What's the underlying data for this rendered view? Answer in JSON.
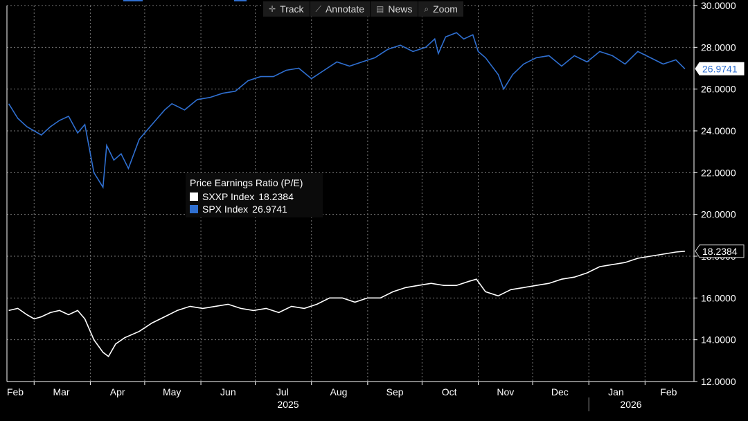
{
  "toolbar": {
    "track": "Track",
    "annotate": "Annotate",
    "news": "News",
    "zoom": "Zoom"
  },
  "legend": {
    "title": "Price Earnings Ratio (P/E)",
    "items": [
      {
        "name": "SXXP Index",
        "value": "18.2384",
        "color": "#ffffff"
      },
      {
        "name": "SPX Index",
        "value": "26.9741",
        "color": "#2f6fd0"
      }
    ]
  },
  "chart_data": {
    "type": "line",
    "title": "Price Earnings Ratio (P/E)",
    "ylim": [
      12,
      30
    ],
    "yticks": [
      "12.0000",
      "14.0000",
      "16.0000",
      "18.0000",
      "20.0000",
      "22.0000",
      "24.0000",
      "26.0000",
      "28.0000",
      "30.0000"
    ],
    "x_month_labels": [
      "Feb",
      "Mar",
      "Apr",
      "May",
      "Jun",
      "Jul",
      "Aug",
      "Sep",
      "Oct",
      "Nov",
      "Dec",
      "Jan",
      "Feb"
    ],
    "year_labels": [
      "2025",
      "2026"
    ],
    "grid": true,
    "series": [
      {
        "name": "SPX Index",
        "color": "#2f6fd0",
        "last_value": "26.9741",
        "points": [
          [
            "2025-02-15",
            25.3
          ],
          [
            "2025-02-20",
            24.6
          ],
          [
            "2025-02-25",
            24.2
          ],
          [
            "2025-03-01",
            24.0
          ],
          [
            "2025-03-05",
            23.8
          ],
          [
            "2025-03-10",
            24.2
          ],
          [
            "2025-03-15",
            24.5
          ],
          [
            "2025-03-20",
            24.7
          ],
          [
            "2025-03-25",
            23.9
          ],
          [
            "2025-03-29",
            24.3
          ],
          [
            "2025-04-03",
            22.0
          ],
          [
            "2025-04-08",
            21.3
          ],
          [
            "2025-04-10",
            23.3
          ],
          [
            "2025-04-14",
            22.6
          ],
          [
            "2025-04-18",
            22.9
          ],
          [
            "2025-04-22",
            22.2
          ],
          [
            "2025-04-28",
            23.6
          ],
          [
            "2025-05-05",
            24.3
          ],
          [
            "2025-05-12",
            25.0
          ],
          [
            "2025-05-16",
            25.3
          ],
          [
            "2025-05-23",
            25.0
          ],
          [
            "2025-05-30",
            25.5
          ],
          [
            "2025-06-06",
            25.6
          ],
          [
            "2025-06-13",
            25.8
          ],
          [
            "2025-06-20",
            25.9
          ],
          [
            "2025-06-27",
            26.4
          ],
          [
            "2025-07-04",
            26.6
          ],
          [
            "2025-07-11",
            26.6
          ],
          [
            "2025-07-18",
            26.9
          ],
          [
            "2025-07-25",
            27.0
          ],
          [
            "2025-08-01",
            26.5
          ],
          [
            "2025-08-08",
            26.9
          ],
          [
            "2025-08-15",
            27.3
          ],
          [
            "2025-08-22",
            27.1
          ],
          [
            "2025-08-29",
            27.3
          ],
          [
            "2025-09-05",
            27.5
          ],
          [
            "2025-09-12",
            27.9
          ],
          [
            "2025-09-19",
            28.1
          ],
          [
            "2025-09-26",
            27.8
          ],
          [
            "2025-10-03",
            28.0
          ],
          [
            "2025-10-08",
            28.4
          ],
          [
            "2025-10-10",
            27.7
          ],
          [
            "2025-10-14",
            28.5
          ],
          [
            "2025-10-20",
            28.7
          ],
          [
            "2025-10-24",
            28.4
          ],
          [
            "2025-10-29",
            28.6
          ],
          [
            "2025-11-01",
            27.8
          ],
          [
            "2025-11-05",
            27.5
          ],
          [
            "2025-11-12",
            26.7
          ],
          [
            "2025-11-15",
            26.0
          ],
          [
            "2025-11-20",
            26.7
          ],
          [
            "2025-11-26",
            27.2
          ],
          [
            "2025-12-03",
            27.5
          ],
          [
            "2025-12-10",
            27.6
          ],
          [
            "2025-12-17",
            27.1
          ],
          [
            "2025-12-24",
            27.6
          ],
          [
            "2025-12-31",
            27.3
          ],
          [
            "2026-01-07",
            27.8
          ],
          [
            "2026-01-14",
            27.6
          ],
          [
            "2026-01-21",
            27.2
          ],
          [
            "2026-01-28",
            27.8
          ],
          [
            "2026-02-04",
            27.5
          ],
          [
            "2026-02-11",
            27.2
          ],
          [
            "2026-02-18",
            27.4
          ],
          [
            "2026-02-23",
            26.97
          ]
        ]
      },
      {
        "name": "SXXP Index",
        "color": "#ffffff",
        "last_value": "18.2384",
        "points": [
          [
            "2025-02-15",
            15.4
          ],
          [
            "2025-02-20",
            15.5
          ],
          [
            "2025-02-25",
            15.2
          ],
          [
            "2025-03-01",
            15.0
          ],
          [
            "2025-03-05",
            15.1
          ],
          [
            "2025-03-10",
            15.3
          ],
          [
            "2025-03-15",
            15.4
          ],
          [
            "2025-03-20",
            15.2
          ],
          [
            "2025-03-25",
            15.4
          ],
          [
            "2025-03-29",
            15.0
          ],
          [
            "2025-04-03",
            14.0
          ],
          [
            "2025-04-08",
            13.4
          ],
          [
            "2025-04-11",
            13.2
          ],
          [
            "2025-04-15",
            13.8
          ],
          [
            "2025-04-20",
            14.1
          ],
          [
            "2025-04-28",
            14.4
          ],
          [
            "2025-05-05",
            14.8
          ],
          [
            "2025-05-12",
            15.1
          ],
          [
            "2025-05-19",
            15.4
          ],
          [
            "2025-05-26",
            15.6
          ],
          [
            "2025-06-02",
            15.5
          ],
          [
            "2025-06-09",
            15.6
          ],
          [
            "2025-06-16",
            15.7
          ],
          [
            "2025-06-23",
            15.5
          ],
          [
            "2025-06-30",
            15.4
          ],
          [
            "2025-07-07",
            15.5
          ],
          [
            "2025-07-14",
            15.3
          ],
          [
            "2025-07-21",
            15.6
          ],
          [
            "2025-07-28",
            15.5
          ],
          [
            "2025-08-04",
            15.7
          ],
          [
            "2025-08-11",
            16.0
          ],
          [
            "2025-08-18",
            16.0
          ],
          [
            "2025-08-25",
            15.8
          ],
          [
            "2025-09-01",
            16.0
          ],
          [
            "2025-09-08",
            16.0
          ],
          [
            "2025-09-15",
            16.3
          ],
          [
            "2025-09-22",
            16.5
          ],
          [
            "2025-09-29",
            16.6
          ],
          [
            "2025-10-06",
            16.7
          ],
          [
            "2025-10-13",
            16.6
          ],
          [
            "2025-10-20",
            16.6
          ],
          [
            "2025-10-27",
            16.8
          ],
          [
            "2025-10-31",
            16.9
          ],
          [
            "2025-11-05",
            16.3
          ],
          [
            "2025-11-12",
            16.1
          ],
          [
            "2025-11-19",
            16.4
          ],
          [
            "2025-11-26",
            16.5
          ],
          [
            "2025-12-03",
            16.6
          ],
          [
            "2025-12-10",
            16.7
          ],
          [
            "2025-12-17",
            16.9
          ],
          [
            "2025-12-24",
            17.0
          ],
          [
            "2025-12-31",
            17.2
          ],
          [
            "2026-01-07",
            17.5
          ],
          [
            "2026-01-14",
            17.6
          ],
          [
            "2026-01-21",
            17.7
          ],
          [
            "2026-01-28",
            17.9
          ],
          [
            "2026-02-04",
            18.0
          ],
          [
            "2026-02-11",
            18.1
          ],
          [
            "2026-02-18",
            18.2
          ],
          [
            "2026-02-23",
            18.24
          ]
        ]
      }
    ]
  }
}
